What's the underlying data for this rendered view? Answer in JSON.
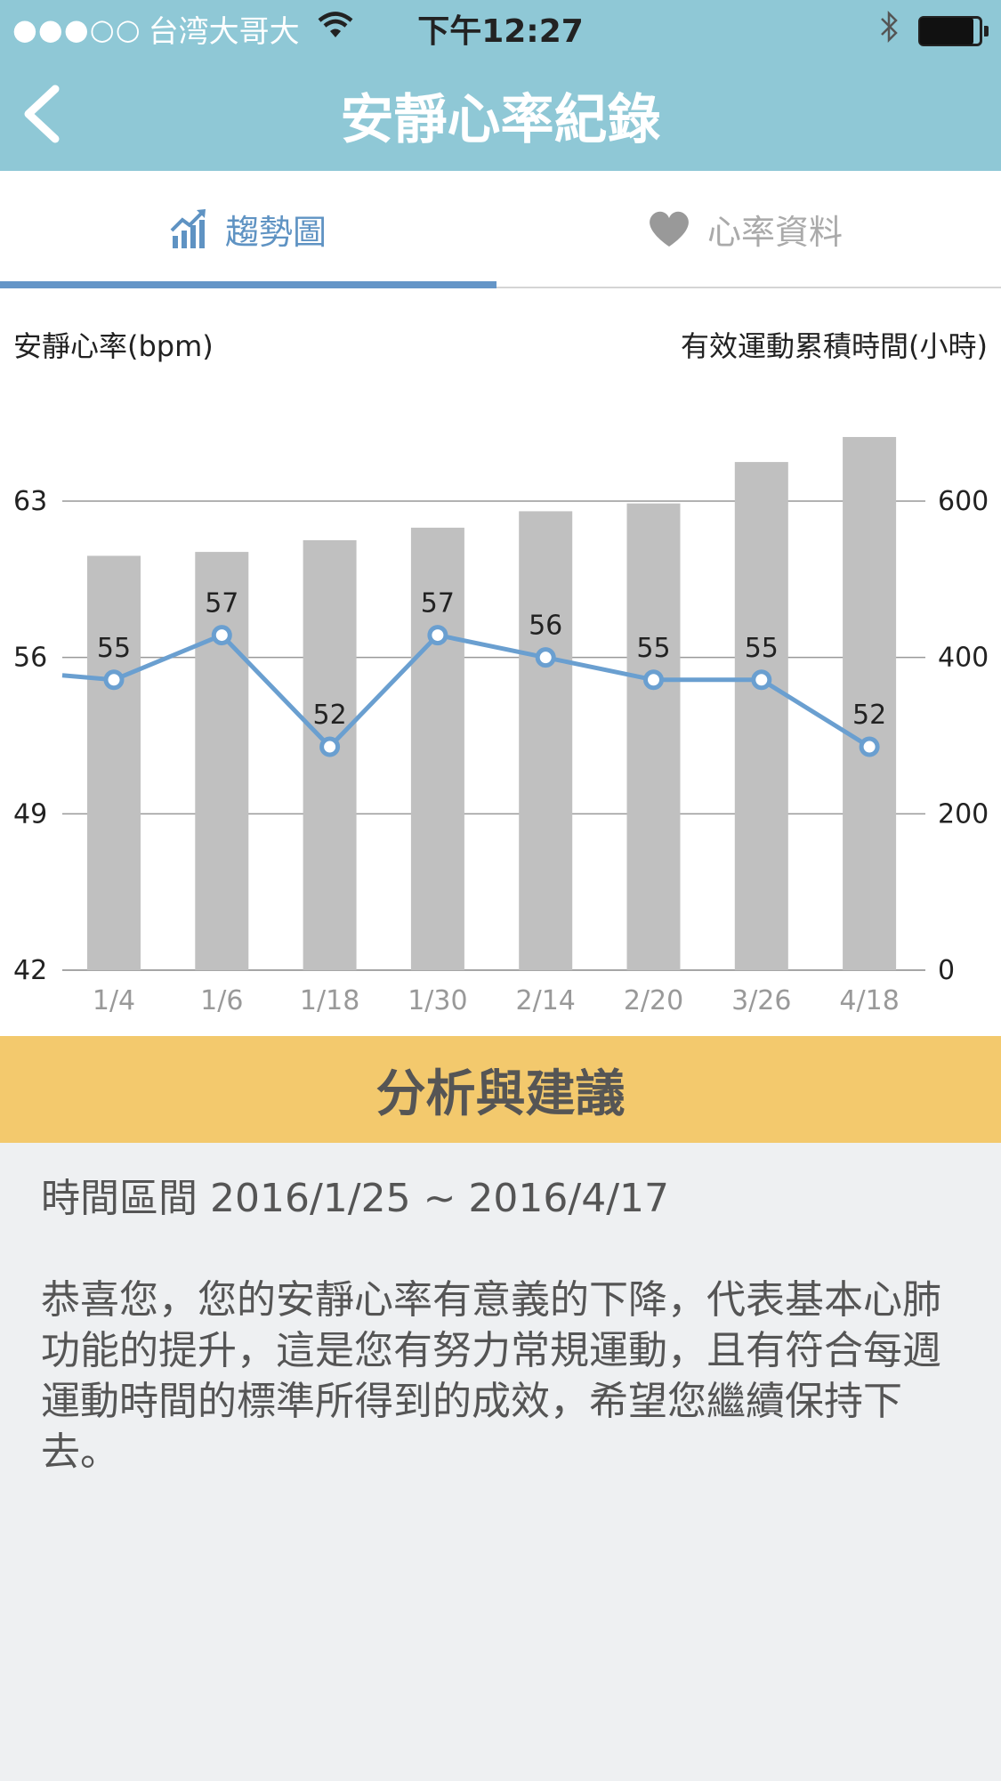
{
  "status_bar": {
    "signal": "●●●○○",
    "carrier": "台湾大哥大",
    "time": "下午12:27"
  },
  "header": {
    "title": "安靜心率紀錄"
  },
  "tabs": [
    {
      "label": "趨勢圖",
      "icon": "trend-chart-icon",
      "active": true
    },
    {
      "label": "心率資料",
      "icon": "heart-icon",
      "active": false
    }
  ],
  "colors": {
    "header_bg": "#8fc8d6",
    "accent_blue": "#6495c7",
    "bar_gray": "#c0c0c0",
    "banner_yellow": "#f3c96d"
  },
  "chart_data": {
    "type": "bar+line",
    "left_axis_title": "安靜心率(bpm)",
    "right_axis_title": "有效運動累積時間(小時)",
    "categories": [
      "1/4",
      "1/6",
      "1/18",
      "1/30",
      "2/14",
      "2/20",
      "3/26",
      "4/18"
    ],
    "line_series": {
      "values": [
        55,
        57,
        52,
        57,
        56,
        55,
        55,
        52
      ]
    },
    "line_lead_in_value": 55.2,
    "bar_series": {
      "values": [
        530,
        535,
        550,
        566,
        587,
        597,
        650,
        682
      ]
    },
    "left_ticks": [
      "63",
      "56",
      "49",
      "42"
    ],
    "right_ticks": [
      "600",
      "400",
      "200",
      "0"
    ],
    "left_ylim": [
      42,
      63
    ],
    "right_ylim": [
      0,
      600
    ],
    "grid": true
  },
  "analysis": {
    "banner": "分析與建議",
    "period": "時間區間 2016/1/25 ~ 2016/4/17",
    "advice": "恭喜您，您的安靜心率有意義的下降，代表基本心肺功能的提升，這是您有努力常規運動，且有符合每週運動時間的標準所得到的成效，希望您繼續保持下去。"
  }
}
